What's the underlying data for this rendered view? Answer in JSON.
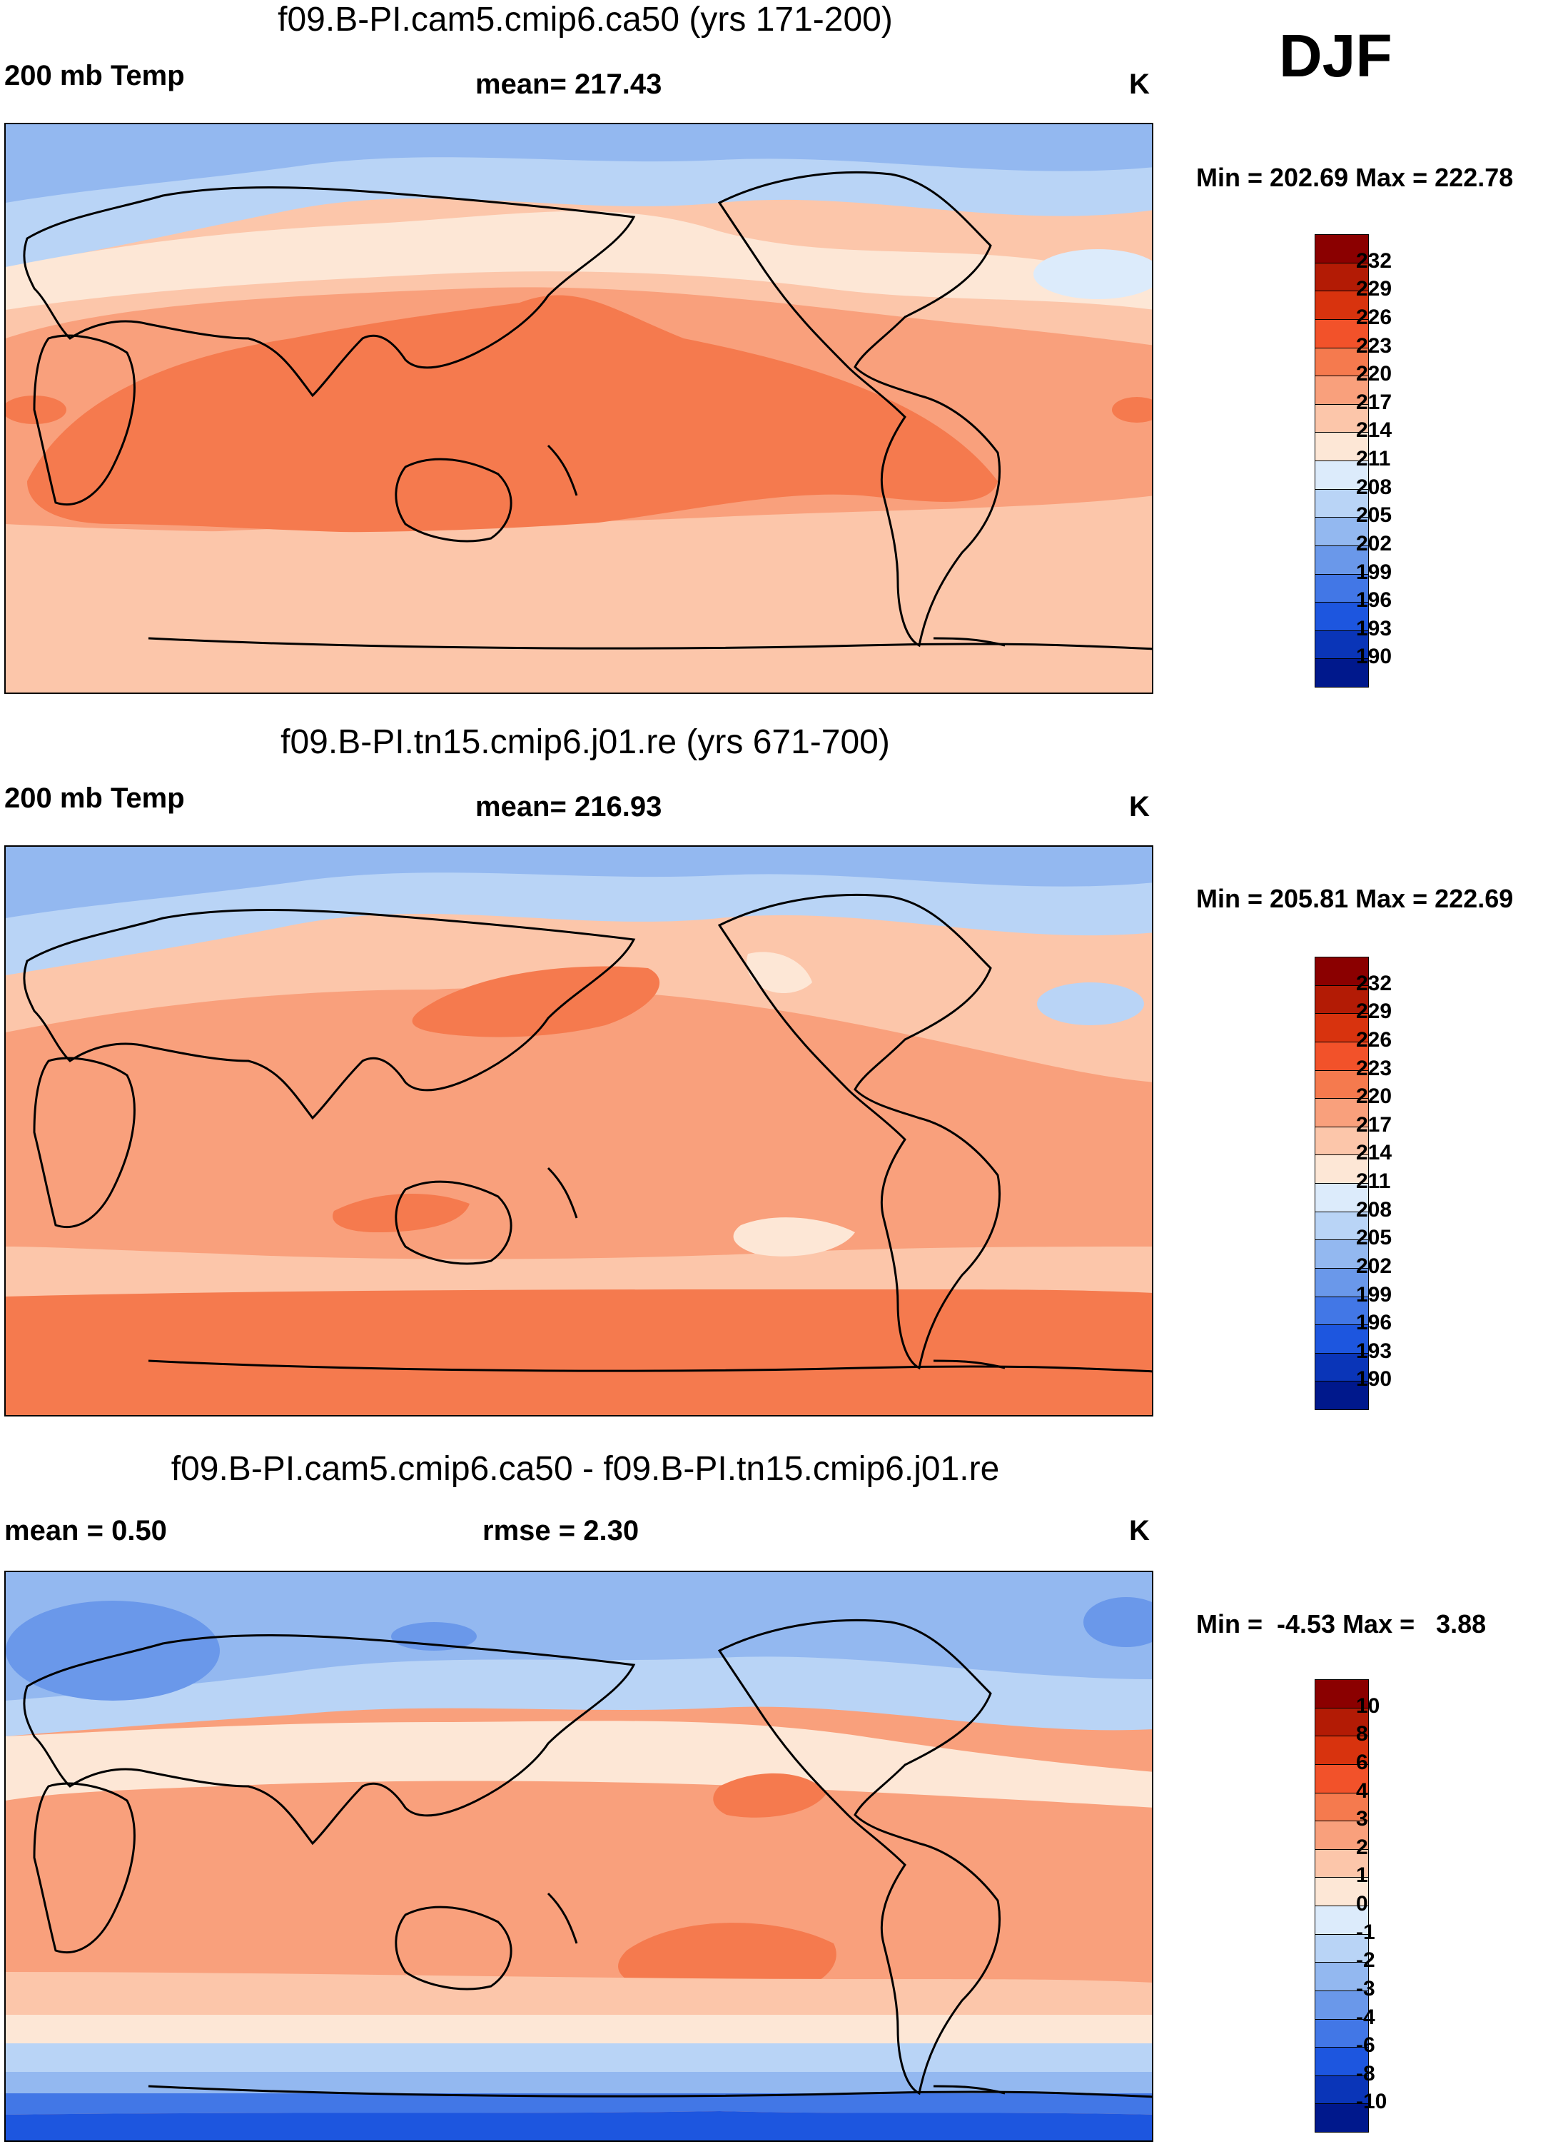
{
  "season": "DJF",
  "panels": [
    {
      "title": "f09.B-PI.cam5.cmip6.ca50 (yrs 171-200)",
      "left": "200 mb Temp",
      "center": "mean= 217.43",
      "units": "K",
      "minmax": "Min = 202.69 Max = 222.78",
      "colorbar": {
        "labels": [
          "232",
          "229",
          "226",
          "223",
          "220",
          "217",
          "214",
          "211",
          "208",
          "205",
          "202",
          "199",
          "196",
          "193",
          "190"
        ],
        "colors": [
          "#8b0000",
          "#b31b05",
          "#d8330e",
          "#f2522a",
          "#f57a4e",
          "#f9a07c",
          "#fcc6aa",
          "#fde7d6",
          "#dcebfb",
          "#b9d4f6",
          "#93b8f0",
          "#6a98ea",
          "#4277e6",
          "#1d56df",
          "#0a35b8",
          "#00188c"
        ]
      }
    },
    {
      "title": "f09.B-PI.tn15.cmip6.j01.re (yrs 671-700)",
      "left": "200 mb Temp",
      "center": "mean= 216.93",
      "units": "K",
      "minmax": "Min = 205.81 Max = 222.69",
      "colorbar": {
        "labels": [
          "232",
          "229",
          "226",
          "223",
          "220",
          "217",
          "214",
          "211",
          "208",
          "205",
          "202",
          "199",
          "196",
          "193",
          "190"
        ],
        "colors": [
          "#8b0000",
          "#b31b05",
          "#d8330e",
          "#f2522a",
          "#f57a4e",
          "#f9a07c",
          "#fcc6aa",
          "#fde7d6",
          "#dcebfb",
          "#b9d4f6",
          "#93b8f0",
          "#6a98ea",
          "#4277e6",
          "#1d56df",
          "#0a35b8",
          "#00188c"
        ]
      }
    },
    {
      "title": "f09.B-PI.cam5.cmip6.ca50 - f09.B-PI.tn15.cmip6.j01.re",
      "left": "mean =   0.50",
      "center": "rmse =   2.30",
      "units": "K",
      "minmax": "Min =  -4.53 Max =   3.88",
      "colorbar": {
        "labels": [
          "10",
          "8",
          "6",
          "4",
          "3",
          "2",
          "1",
          "0",
          "-1",
          "-2",
          "-3",
          "-4",
          "-6",
          "-8",
          "-10"
        ],
        "colors": [
          "#8b0000",
          "#b31b05",
          "#d8330e",
          "#f2522a",
          "#f57a4e",
          "#f9a07c",
          "#fcc6aa",
          "#fde7d6",
          "#dcebfb",
          "#b9d4f6",
          "#93b8f0",
          "#6a98ea",
          "#4277e6",
          "#1d56df",
          "#0a35b8",
          "#00188c"
        ]
      }
    }
  ]
}
